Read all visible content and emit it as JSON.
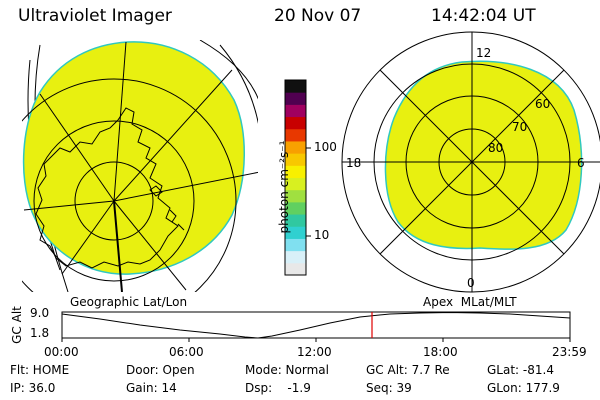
{
  "header": {
    "title": "Ultraviolet Imager",
    "date": "20 Nov 07",
    "time": "14:42:04 UT"
  },
  "colorbar": {
    "unit_label": "photon cm⁻²s⁻¹",
    "tick_high": "100",
    "tick_low": "10",
    "colors": [
      "#e8e8e8",
      "#d8f0f8",
      "#80e0f0",
      "#30d0d0",
      "#30c8a0",
      "#60d060",
      "#a0e040",
      "#d8f020",
      "#f8f000",
      "#f8c800",
      "#f8a000",
      "#e83800",
      "#c80000",
      "#a00060",
      "#500050",
      "#101010"
    ]
  },
  "geo_panel": {
    "caption": "Geographic Lat/Lon",
    "fill_color": "#e8f010"
  },
  "apex_panel": {
    "caption": "Apex  MLat/MLT",
    "mlt_top": "12",
    "mlt_left": "18",
    "mlt_right": "6",
    "mlt_bottom": "0",
    "lat_60": "60",
    "lat_70": "70",
    "lat_80": "80",
    "fill_color": "#e8f010"
  },
  "altitude_plot": {
    "ylabel": "GC Alt",
    "ytick_top": "9.0",
    "ytick_bottom": "1.8",
    "xticks": [
      "00:00",
      "06:00",
      "12:00",
      "18:00",
      "23:59"
    ],
    "marker_color": "#e00000"
  },
  "status": {
    "flt": "Flt: HOME",
    "ip": "IP: 36.0",
    "door": "Door: Open",
    "gain": "Gain: 14",
    "mode": "Mode: Normal",
    "dsp": "Dsp:    -1.9",
    "gc_alt": "GC Alt: 7.7 Re",
    "seq": "Seq: 39",
    "glat": "GLat: -81.4",
    "glon": "GLon: 177.9"
  }
}
